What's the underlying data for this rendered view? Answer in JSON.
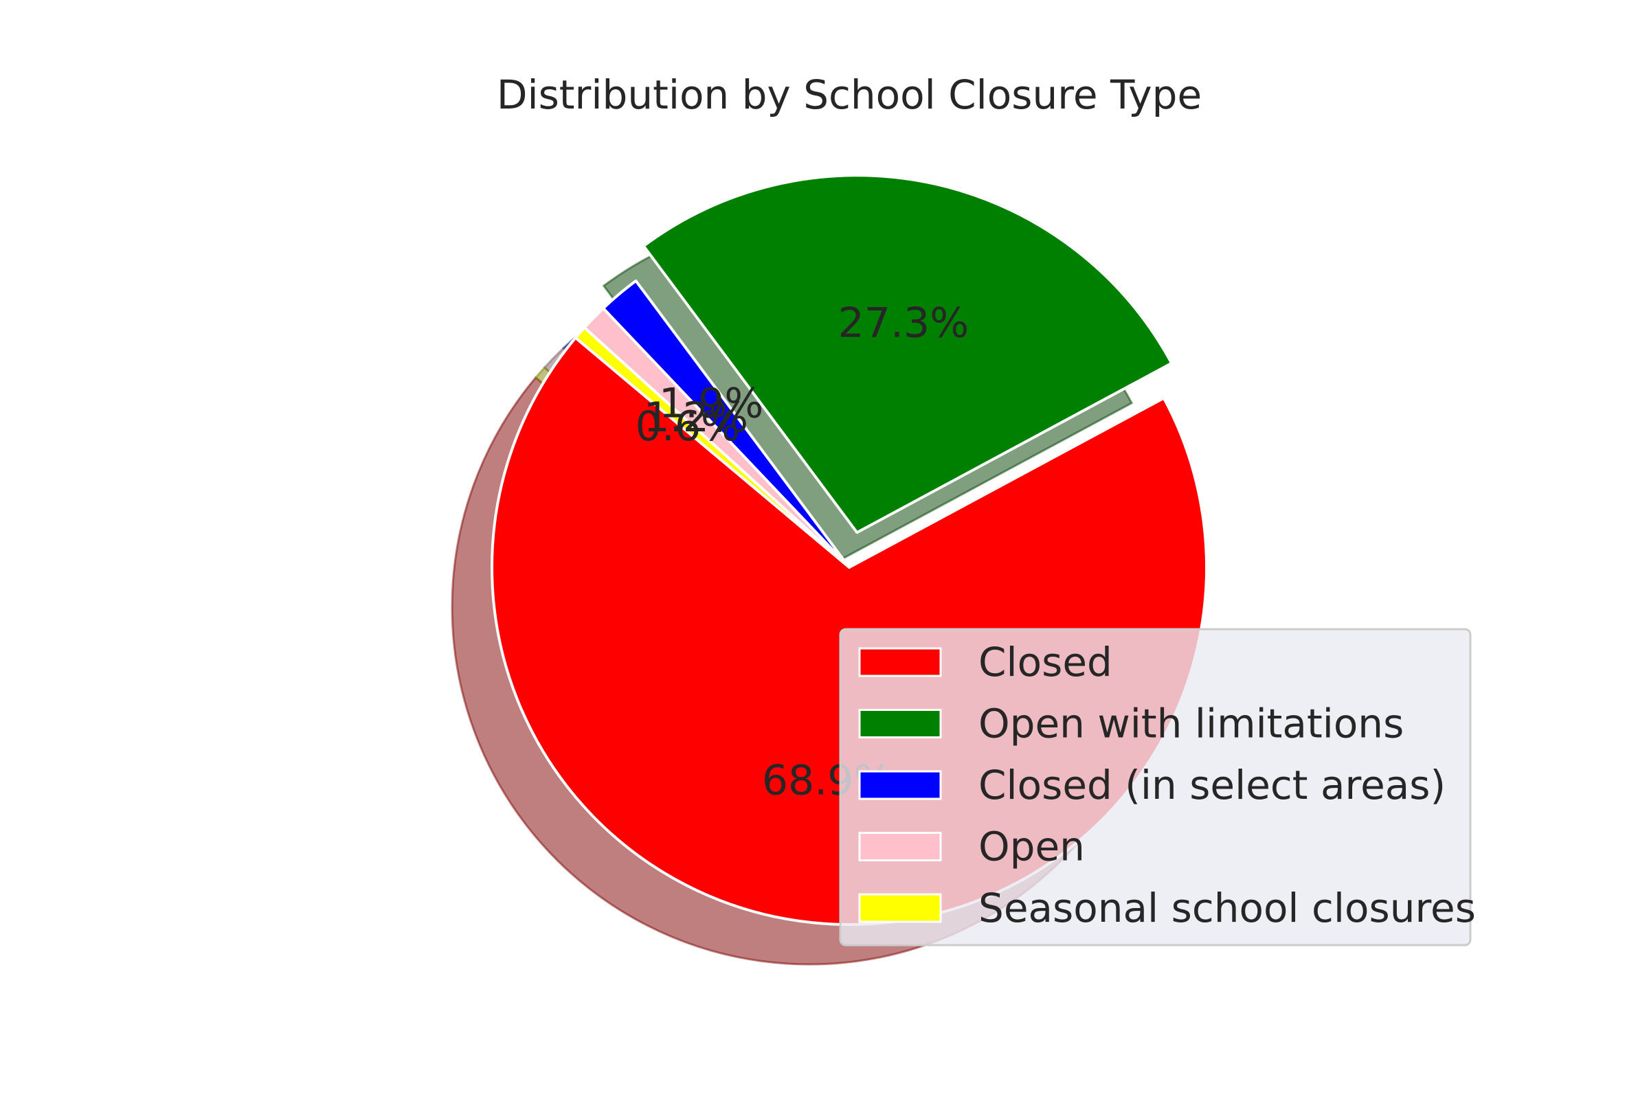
{
  "chart_data": {
    "type": "pie",
    "title": "Distribution by School Closure Type",
    "slices": [
      {
        "label": "Closed",
        "percent": 68.9,
        "color": "#ff0000"
      },
      {
        "label": "Open with limitations",
        "percent": 27.3,
        "color": "#008000"
      },
      {
        "label": "Closed (in select areas)",
        "percent": 1.9,
        "color": "#0000ff"
      },
      {
        "label": "Open",
        "percent": 1.2,
        "color": "#ffc0cb"
      },
      {
        "label": "Seasonal school closures",
        "percent": 0.6,
        "color": "#ffff00"
      }
    ],
    "start_angle_deg": 140,
    "exploded": true,
    "shadow": true,
    "legend_position": "lower-right"
  }
}
